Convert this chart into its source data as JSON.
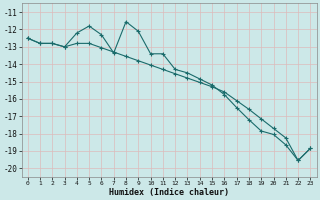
{
  "xlabel": "Humidex (Indice chaleur)",
  "bg_color": "#cce8e8",
  "grid_color": "#b0d0d0",
  "line_color": "#1a6b6b",
  "xlim": [
    -0.5,
    23.5
  ],
  "ylim": [
    -20.5,
    -10.5
  ],
  "yticks": [
    -11,
    -12,
    -13,
    -14,
    -15,
    -16,
    -17,
    -18,
    -19,
    -20
  ],
  "xticks": [
    0,
    1,
    2,
    3,
    4,
    5,
    6,
    7,
    8,
    9,
    10,
    11,
    12,
    13,
    14,
    15,
    16,
    17,
    18,
    19,
    20,
    21,
    22,
    23
  ],
  "series1_x": [
    0,
    1,
    2,
    3,
    4,
    5,
    6,
    7,
    8,
    9,
    10,
    11,
    12,
    13,
    14,
    15,
    16,
    17,
    18,
    19,
    20,
    21,
    22,
    23
  ],
  "series1_y": [
    -12.5,
    -12.8,
    -12.8,
    -13.0,
    -12.2,
    -11.8,
    -12.3,
    -13.35,
    -11.55,
    -12.1,
    -13.4,
    -13.4,
    -14.3,
    -14.5,
    -14.85,
    -15.2,
    -15.75,
    -16.5,
    -17.2,
    -17.85,
    -18.05,
    -18.65,
    -19.55,
    -18.85
  ],
  "series2_x": [
    0,
    1,
    2,
    3,
    4,
    5,
    6,
    7,
    8,
    9,
    10,
    11,
    12,
    13,
    14,
    15,
    16,
    17,
    18,
    19,
    20,
    21,
    22,
    23
  ],
  "series2_y": [
    -12.5,
    -12.8,
    -12.8,
    -13.0,
    -12.8,
    -12.8,
    -13.05,
    -13.3,
    -13.55,
    -13.8,
    -14.05,
    -14.3,
    -14.55,
    -14.8,
    -15.05,
    -15.3,
    -15.6,
    -16.1,
    -16.6,
    -17.15,
    -17.7,
    -18.25,
    -19.55,
    -18.85
  ]
}
